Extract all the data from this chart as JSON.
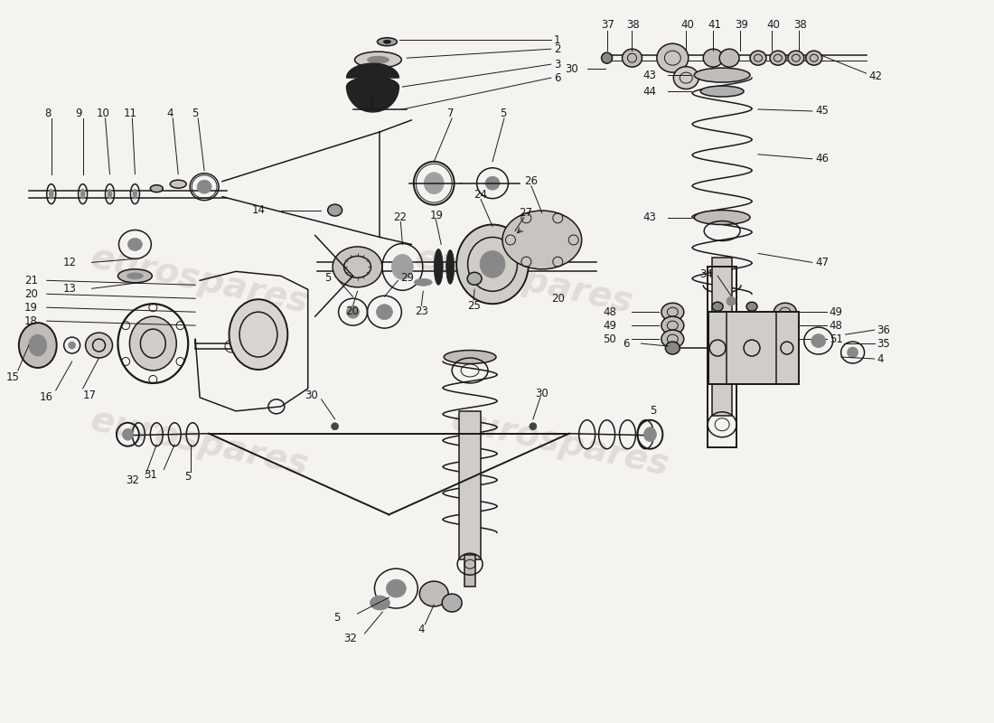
{
  "background_color": "#f5f3f0",
  "line_color": "#1a1a1a",
  "watermark_text": "eurospares",
  "watermark_color": "#c0b8b0",
  "watermark_alpha": 0.38,
  "fig_width": 11.0,
  "fig_height": 8.0,
  "dpi": 100
}
